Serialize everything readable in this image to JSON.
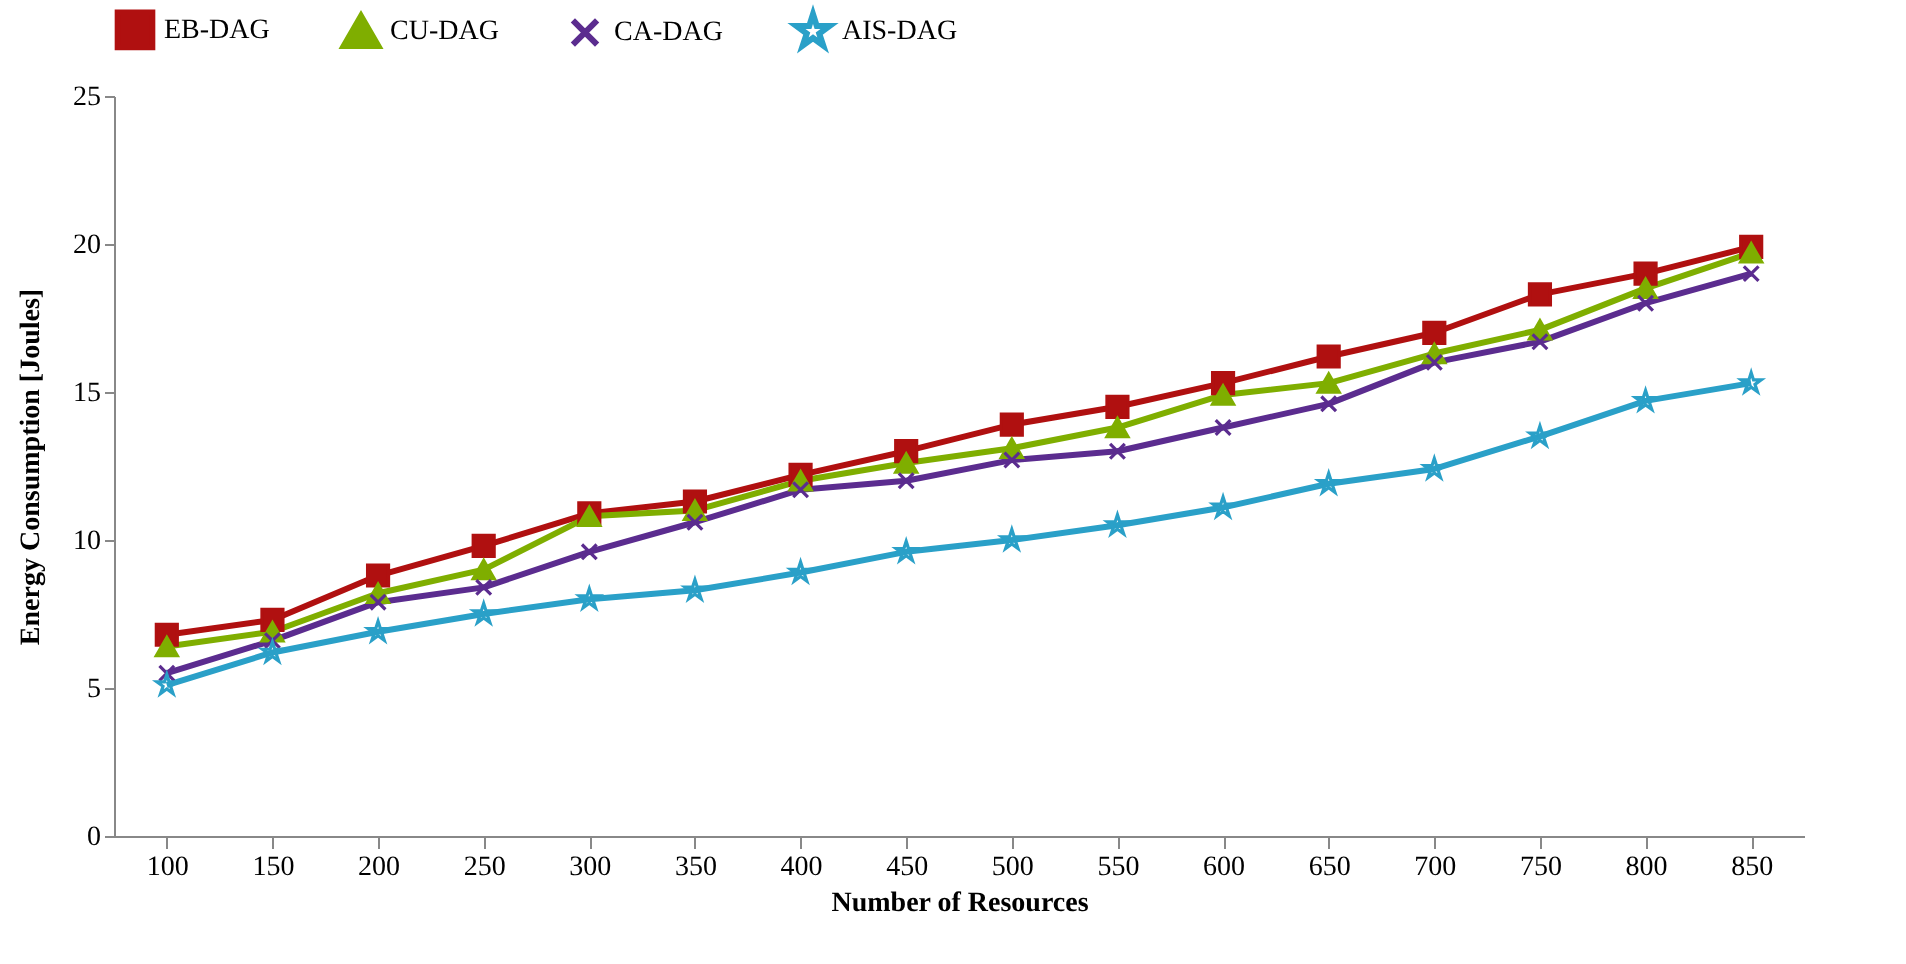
{
  "chart_data": {
    "type": "line",
    "xlabel": "Number of Resources",
    "ylabel": "Energy Consumption [Joules]",
    "categories": [
      "100",
      "150",
      "200",
      "250",
      "300",
      "350",
      "400",
      "450",
      "500",
      "550",
      "600",
      "650",
      "700",
      "750",
      "800",
      "850"
    ],
    "ylim": [
      0,
      25
    ],
    "yticks": [
      0,
      5,
      10,
      15,
      20,
      25
    ],
    "grid": false,
    "legend": "top",
    "series": [
      {
        "name": "EB-DAG",
        "color": "#b01010",
        "marker": "square",
        "values": [
          6.8,
          7.3,
          8.8,
          9.8,
          10.9,
          11.3,
          12.2,
          13.0,
          13.9,
          14.5,
          15.3,
          16.2,
          17.0,
          18.3,
          19.0,
          19.9
        ]
      },
      {
        "name": "CU-DAG",
        "color": "#7fae00",
        "marker": "triangle",
        "values": [
          6.4,
          6.9,
          8.2,
          9.0,
          10.8,
          11.0,
          12.0,
          12.6,
          13.1,
          13.8,
          14.9,
          15.3,
          16.3,
          17.1,
          18.5,
          19.7
        ]
      },
      {
        "name": "CA-DAG",
        "color": "#5b2c8f",
        "marker": "cross",
        "values": [
          5.5,
          6.6,
          7.9,
          8.4,
          9.6,
          10.6,
          11.7,
          12.0,
          12.7,
          13.0,
          13.8,
          14.6,
          16.0,
          16.7,
          18.0,
          19.0
        ]
      },
      {
        "name": "AIS-DAG",
        "color": "#2aa0c8",
        "marker": "star",
        "values": [
          5.1,
          6.2,
          6.9,
          7.5,
          8.0,
          8.3,
          8.9,
          9.6,
          10.0,
          10.5,
          11.1,
          11.9,
          12.4,
          13.5,
          14.7,
          15.3
        ]
      }
    ]
  }
}
